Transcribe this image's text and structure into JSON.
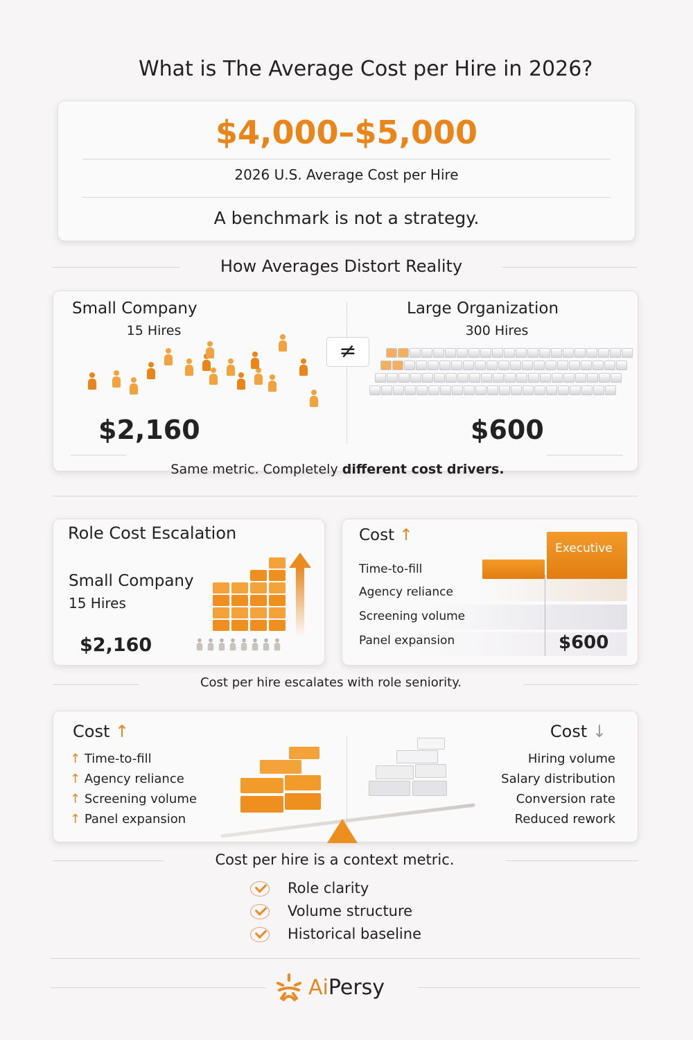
{
  "title": "What is The Average Cost per Hire in 2026?",
  "hero": {
    "range": "$4,000–$5,000",
    "subtitle": "2026 U.S. Average Cost per Hire",
    "tagline": "A benchmark is not a strategy."
  },
  "distort": {
    "heading": "How Averages Distort Reality",
    "left": {
      "title": "Small Company",
      "hires": "15 Hires",
      "cost": "$2,160"
    },
    "right": {
      "title": "Large Organization",
      "hires": "300 Hires",
      "cost": "$600"
    },
    "not_equal": "≠",
    "caption_plain": "Same metric. Completely",
    "caption_bold": "different cost drivers."
  },
  "escalation": {
    "title": "Role Cost Escalation",
    "company": "Small Company",
    "hires": "15 Hires",
    "cost": "$2,160"
  },
  "cost_up_card": {
    "title": "Cost",
    "arrow": "↑",
    "items": [
      "Time-to-fill",
      "Agency reliance",
      "Screening volume",
      "Panel expansion"
    ],
    "executive": "Executive",
    "cost": "$600"
  },
  "escalation_caption": "Cost per hire escalates with role seniority.",
  "balance": {
    "left": {
      "title": "Cost",
      "arrow": "↑",
      "items": [
        "Time-to-fill",
        "Agency reliance",
        "Screening volume",
        "Panel expansion"
      ]
    },
    "right": {
      "title": "Cost",
      "arrow": "↓",
      "items": [
        "Hiring volume",
        "Salary distribution",
        "Conversion rate",
        "Reduced rework"
      ]
    }
  },
  "context_caption": "Cost per hire is a context metric.",
  "checklist": [
    "Role clarity",
    "Volume structure",
    "Historical baseline"
  ],
  "logo": {
    "ai": "Ai",
    "persy": "Persy"
  },
  "colors": {
    "accent": "#e8861c",
    "text": "#222222",
    "background": "#f7f5f6"
  }
}
